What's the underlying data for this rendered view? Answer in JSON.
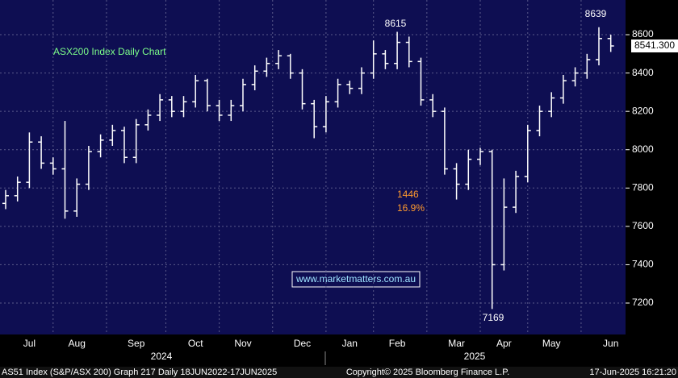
{
  "chart_data": {
    "type": "ohlc",
    "title": "ASX200 Index Daily Chart",
    "categories": [
      null,
      null,
      "Jul",
      null,
      null,
      null,
      "Aug",
      null,
      null,
      null,
      null,
      "Sep",
      null,
      null,
      null,
      null,
      "Oct",
      null,
      null,
      null,
      "Nov",
      null,
      null,
      null,
      null,
      "Dec",
      null,
      null,
      null,
      "Jan",
      null,
      null,
      null,
      "Feb",
      null,
      null,
      null,
      null,
      "Mar",
      null,
      null,
      null,
      "Apr",
      null,
      null,
      null,
      "May",
      null,
      null,
      null,
      null,
      "Jun"
    ],
    "years": [
      "2024",
      "2025"
    ],
    "open": [
      7720,
      7760,
      7830,
      8040,
      7930,
      7900,
      7680,
      7820,
      7990,
      8050,
      8100,
      7960,
      8130,
      8180,
      8260,
      8200,
      8250,
      8360,
      8230,
      8180,
      8230,
      8340,
      8410,
      8450,
      8490,
      8400,
      8240,
      8120,
      8250,
      8340,
      8320,
      8400,
      8500,
      8450,
      8560,
      8460,
      8260,
      8200,
      7900,
      7820,
      7950,
      7990,
      7400,
      7700,
      7860,
      8100,
      8200,
      8270,
      8360,
      8400,
      8470,
      8580
    ],
    "high": [
      7790,
      7860,
      8090,
      8070,
      7960,
      8150,
      7850,
      8020,
      8080,
      8130,
      8120,
      8160,
      8210,
      8290,
      8280,
      8280,
      8390,
      8370,
      8260,
      8260,
      8370,
      8440,
      8480,
      8520,
      8500,
      8420,
      8260,
      8280,
      8370,
      8360,
      8430,
      8570,
      8520,
      8615,
      8590,
      8480,
      8290,
      8220,
      7930,
      8000,
      8010,
      8000,
      7850,
      7890,
      8130,
      8230,
      8300,
      8390,
      8430,
      8500,
      8639,
      8600
    ],
    "low": [
      7690,
      7730,
      7800,
      7900,
      7870,
      7640,
      7650,
      7790,
      7960,
      8020,
      7930,
      7930,
      8100,
      8150,
      8170,
      8170,
      8220,
      8200,
      8150,
      8150,
      8200,
      8310,
      8380,
      8420,
      8370,
      8210,
      8060,
      8090,
      8220,
      8290,
      8290,
      8370,
      8420,
      8420,
      8430,
      8230,
      8170,
      7870,
      7740,
      7790,
      7920,
      7169,
      7370,
      7670,
      7830,
      8070,
      8170,
      8240,
      8330,
      8370,
      8440,
      8510
    ],
    "close": [
      7760,
      7830,
      8040,
      7930,
      7900,
      7680,
      7820,
      7990,
      8050,
      8100,
      7960,
      8130,
      8180,
      8260,
      8200,
      8250,
      8360,
      8230,
      8180,
      8230,
      8340,
      8410,
      8450,
      8490,
      8400,
      8240,
      8120,
      8250,
      8340,
      8320,
      8400,
      8500,
      8450,
      8560,
      8460,
      8260,
      8200,
      7900,
      7820,
      7950,
      7990,
      7400,
      7700,
      7860,
      8100,
      8200,
      8270,
      8360,
      8400,
      8470,
      8580,
      8541.3
    ],
    "color": "#ffffff",
    "ylim": [
      7036,
      8781
    ],
    "yticks": [
      7200,
      7400,
      7600,
      7800,
      8000,
      8200,
      8400,
      8600
    ],
    "grid": true,
    "last_value": 8541.3,
    "last_value_label": "8541.300",
    "annotations": {
      "high_1": "8615",
      "high_2": "8639",
      "low": "7169",
      "fall_points": "1446",
      "fall_percent": "16.9%"
    },
    "watermark": "www.marketmatters.com.au",
    "footer": {
      "left": "AS51 Index (S&P/ASX 200) Graph 217  Daily 18JUN2022-17JUN2025",
      "center": "Copyright© 2025 Bloomberg Finance L.P.",
      "right": "17-Jun-2025 16:21:20"
    }
  }
}
